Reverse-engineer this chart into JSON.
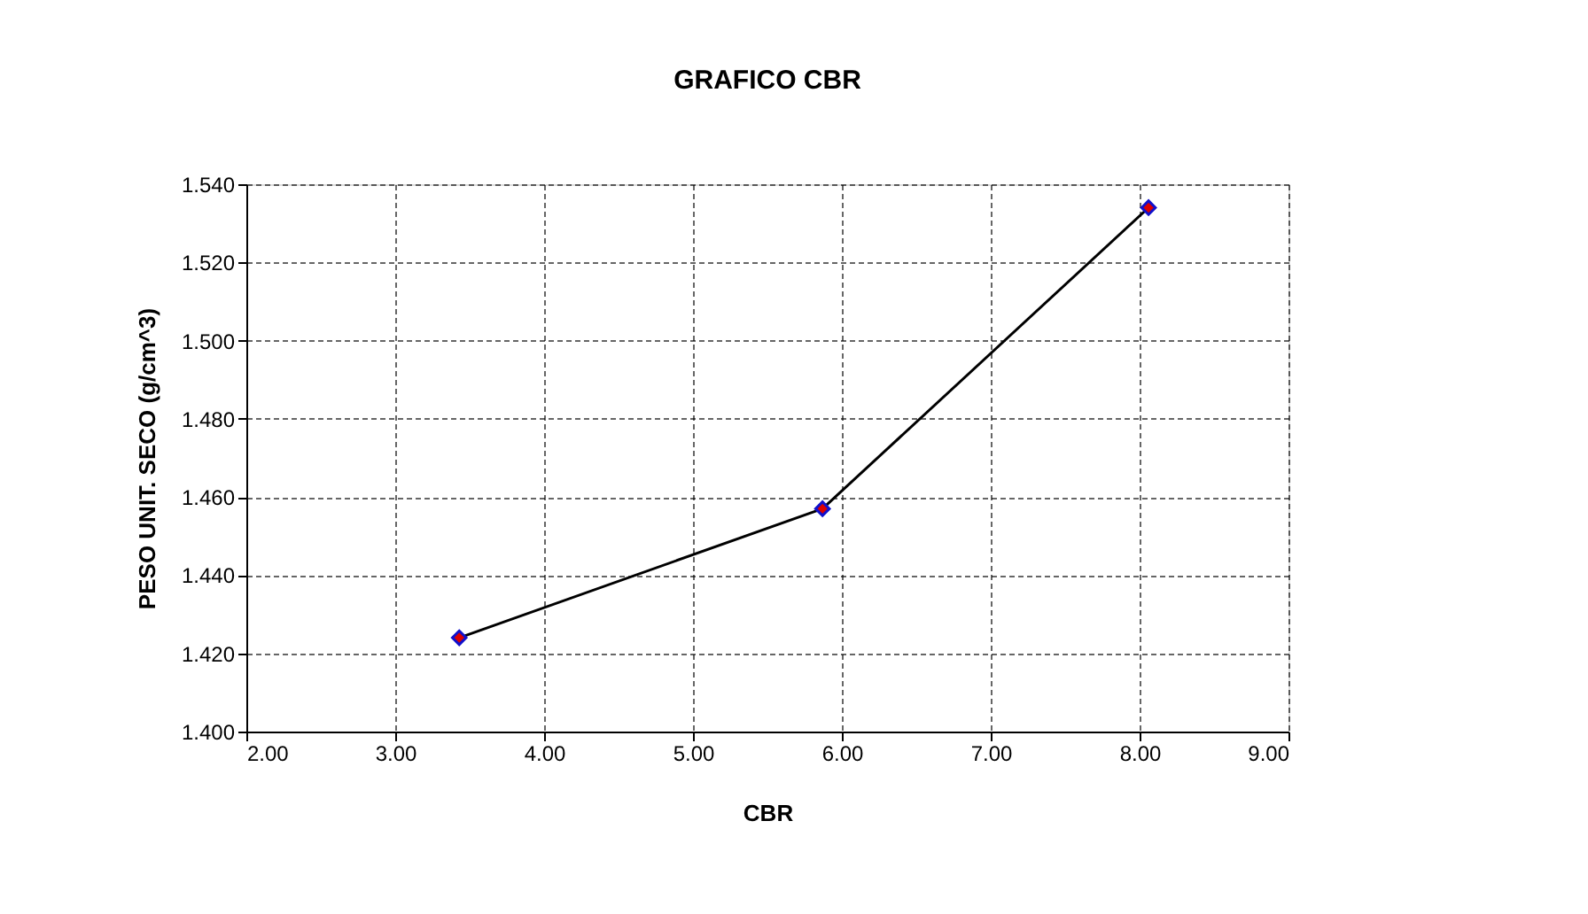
{
  "chart_data": {
    "type": "line",
    "title": "GRAFICO CBR",
    "xlabel": "CBR",
    "ylabel": "PESO UNIT. SECO (g/cm^3)",
    "x": [
      3.43,
      5.87,
      8.06
    ],
    "series": [
      {
        "color": "#000000",
        "values": [
          1.424,
          1.457,
          1.534
        ]
      }
    ],
    "xlim": [
      2,
      9
    ],
    "xticks": [
      {
        "value": 2,
        "label": "2.00"
      },
      {
        "value": 3,
        "label": "3.00"
      },
      {
        "value": 4,
        "label": "4.00"
      },
      {
        "value": 5,
        "label": "5.00"
      },
      {
        "value": 6,
        "label": "6.00"
      },
      {
        "value": 7,
        "label": "7.00"
      },
      {
        "value": 8,
        "label": "8.00"
      },
      {
        "value": 9,
        "label": "9.00"
      }
    ],
    "ylim": [
      1.4,
      1.54
    ],
    "yticks": [
      {
        "value": 1.4,
        "label": "1.400"
      },
      {
        "value": 1.42,
        "label": "1.420"
      },
      {
        "value": 1.44,
        "label": "1.440"
      },
      {
        "value": 1.46,
        "label": "1.460"
      },
      {
        "value": 1.48,
        "label": "1.480"
      },
      {
        "value": 1.5,
        "label": "1.500"
      },
      {
        "value": 1.52,
        "label": "1.520"
      },
      {
        "value": 1.54,
        "label": "1.540"
      }
    ],
    "grid": true,
    "marker": "diamond",
    "line_style": "solid"
  }
}
